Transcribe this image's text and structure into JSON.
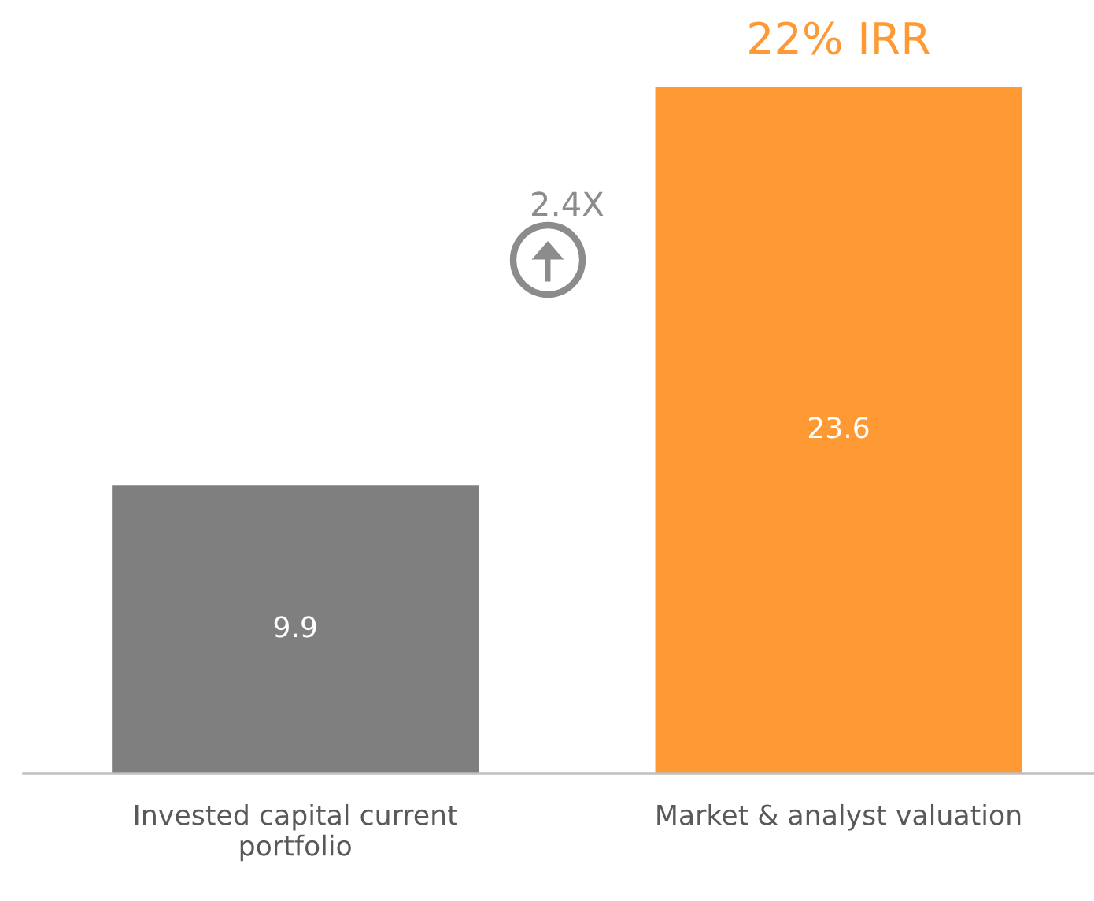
{
  "chart_data": {
    "type": "bar",
    "categories": [
      "Invested capital current portfolio",
      "Market & analyst valuation"
    ],
    "values": [
      9.9,
      23.6
    ],
    "colors": [
      "#7f7f7f",
      "#ff9933"
    ],
    "data_labels": true,
    "annotations": [
      "22% IRR",
      "2.4X"
    ]
  }
}
